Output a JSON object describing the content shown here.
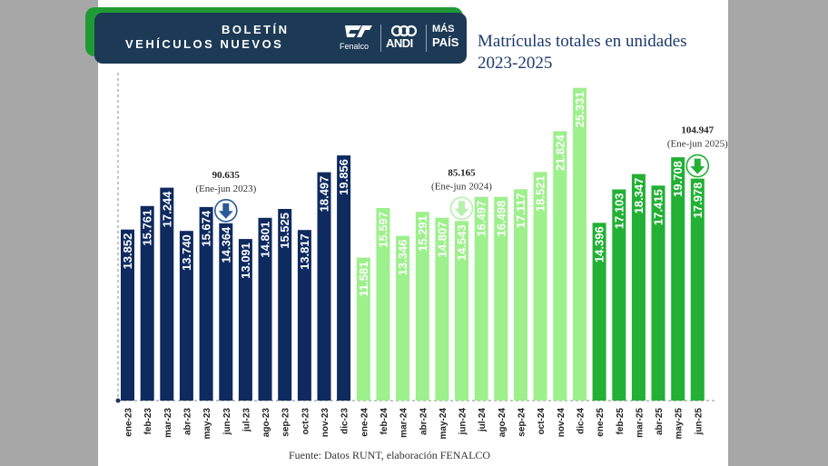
{
  "header": {
    "title_line1": "BOLETÍN",
    "title_line2": "VEHÍCULOS NUEVOS",
    "logos": [
      "Fenalco",
      "ANDI",
      "MÁS",
      "PAÍS"
    ]
  },
  "chart_title_line1": "Matrículas totales en unidades",
  "chart_title_line2": "2023-2025",
  "source": "Fuente: Datos RUNT, elaboración FENALCO",
  "colors": {
    "bar_2023": "#0e2a5f",
    "bar_2024": "#9df08c",
    "bar_2025": "#22b035",
    "arrow_2023": "#2a5a98",
    "arrow_2024": "#b8f0ad",
    "arrow_2025": "#22b035"
  },
  "chart_data": {
    "type": "bar",
    "title": "Matrículas totales en unidades 2023-2025",
    "categories": [
      "ene-23",
      "feb-23",
      "mar-23",
      "abr-23",
      "may-23",
      "jun-23",
      "jul-23",
      "ago-23",
      "sep-23",
      "oct-23",
      "nov-23",
      "dic-23",
      "ene-24",
      "feb-24",
      "mar-24",
      "abr-24",
      "may-24",
      "jun-24",
      "jul-24",
      "ago-24",
      "sep-24",
      "oct-24",
      "nov-24",
      "dic-24",
      "ene-25",
      "feb-25",
      "mar-25",
      "abr-25",
      "may-25",
      "jun-25"
    ],
    "values": [
      13852,
      15761,
      17244,
      13740,
      15674,
      14364,
      13091,
      14801,
      15525,
      13817,
      18497,
      19856,
      11581,
      15597,
      13346,
      15291,
      14807,
      14543,
      16497,
      16498,
      17117,
      18521,
      21824,
      25331,
      14396,
      17103,
      18347,
      17415,
      19708,
      17978
    ],
    "value_labels": [
      "13.852",
      "15.761",
      "17.244",
      "13.740",
      "15.674",
      "14.364",
      "13.091",
      "14.801",
      "15.525",
      "13.817",
      "18.497",
      "19.856",
      "11.581",
      "15.597",
      "13.346",
      "15.291",
      "14.807",
      "14.543",
      "16.497",
      "16.498",
      "17.117",
      "18.521",
      "21.824",
      "25.331",
      "14.396",
      "17.103",
      "18.347",
      "17.415",
      "19.708",
      "17.978"
    ],
    "ylim": [
      0,
      27000
    ],
    "grid": false,
    "annotations": [
      {
        "total": "90.635",
        "period": "(Ene-jun 2023)",
        "category": "jun-23",
        "arrow": "down"
      },
      {
        "total": "85.165",
        "period": "(Ene-jun 2024)",
        "category": "jun-24",
        "arrow": "down"
      },
      {
        "total": "104.947",
        "period": "(Ene-jun 2025)",
        "category": "jun-25",
        "arrow": "down"
      }
    ]
  }
}
